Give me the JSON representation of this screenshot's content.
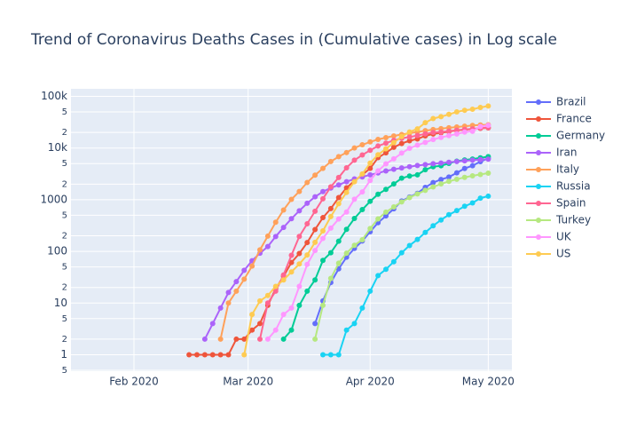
{
  "chart_data": {
    "type": "line",
    "title": "Trend of Coronavirus Deaths Cases in  (Cumulative cases) in Log scale",
    "log_y": true,
    "grid": true,
    "legend": "right",
    "x": [
      "2020-02-15",
      "2020-02-17",
      "2020-02-19",
      "2020-02-21",
      "2020-02-23",
      "2020-02-25",
      "2020-02-27",
      "2020-02-29",
      "2020-03-02",
      "2020-03-04",
      "2020-03-06",
      "2020-03-08",
      "2020-03-10",
      "2020-03-12",
      "2020-03-14",
      "2020-03-16",
      "2020-03-18",
      "2020-03-20",
      "2020-03-22",
      "2020-03-24",
      "2020-03-26",
      "2020-03-28",
      "2020-03-30",
      "2020-04-01",
      "2020-04-03",
      "2020-04-05",
      "2020-04-07",
      "2020-04-09",
      "2020-04-11",
      "2020-04-13",
      "2020-04-15",
      "2020-04-17",
      "2020-04-19",
      "2020-04-21",
      "2020-04-23",
      "2020-04-25",
      "2020-04-27",
      "2020-04-29",
      "2020-05-01"
    ],
    "xlim": [
      "2020-01-16",
      "2020-05-07"
    ],
    "xticks": [
      {
        "value": "2020-02-01",
        "label": "Feb 2020"
      },
      {
        "value": "2020-03-01",
        "label": "Mar 2020"
      },
      {
        "value": "2020-04-01",
        "label": "Apr 2020"
      },
      {
        "value": "2020-05-01",
        "label": "May 2020"
      }
    ],
    "ylim": [
      0.48,
      140000
    ],
    "yticks": [
      {
        "value": 0.5,
        "label": "5"
      },
      1,
      {
        "value": 2,
        "label": "2"
      },
      {
        "value": 5,
        "label": "5"
      },
      10,
      {
        "value": 20,
        "label": "2"
      },
      {
        "value": 50,
        "label": "5"
      },
      100,
      {
        "value": 200,
        "label": "2"
      },
      {
        "value": 500,
        "label": "5"
      },
      1000,
      {
        "value": 2000,
        "label": "2"
      },
      {
        "value": 5000,
        "label": "5"
      },
      {
        "value": 10000,
        "label": "10k"
      },
      {
        "value": 20000,
        "label": "2"
      },
      {
        "value": 50000,
        "label": "5"
      },
      {
        "value": 100000,
        "label": "100k"
      }
    ],
    "series": [
      {
        "name": "Brazil",
        "color": "#636efa",
        "values": [
          null,
          null,
          null,
          null,
          null,
          null,
          null,
          null,
          null,
          null,
          null,
          null,
          null,
          null,
          null,
          null,
          4,
          11,
          25,
          46,
          77,
          114,
          159,
          240,
          359,
          486,
          667,
          941,
          1124,
          1328,
          1736,
          2141,
          2462,
          2741,
          3313,
          4016,
          4543,
          5466,
          6329
        ]
      },
      {
        "name": "France",
        "color": "#ef553b",
        "values": [
          1,
          1,
          1,
          1,
          1,
          1,
          2,
          2,
          3,
          4,
          9,
          19,
          33,
          61,
          91,
          148,
          264,
          450,
          674,
          1100,
          1696,
          2314,
          3024,
          4032,
          6507,
          8078,
          10328,
          12210,
          13832,
          14967,
          17167,
          18681,
          19718,
          20796,
          21856,
          22614,
          23293,
          24087,
          24594
        ]
      },
      {
        "name": "Germany",
        "color": "#00cc96",
        "values": [
          null,
          null,
          null,
          null,
          null,
          null,
          null,
          null,
          null,
          null,
          null,
          null,
          2,
          3,
          9,
          17,
          28,
          67,
          94,
          157,
          267,
          433,
          645,
          931,
          1275,
          1584,
          2016,
          2607,
          2871,
          3022,
          3804,
          4352,
          4538,
          5033,
          5575,
          5877,
          6126,
          6467,
          6812
        ]
      },
      {
        "name": "Iran",
        "color": "#ab63fa",
        "values": [
          null,
          null,
          2,
          4,
          8,
          16,
          26,
          43,
          66,
          92,
          124,
          194,
          291,
          429,
          611,
          853,
          1135,
          1433,
          1685,
          1934,
          2234,
          2517,
          2757,
          3036,
          3294,
          3603,
          3872,
          4110,
          4357,
          4585,
          4777,
          4958,
          5118,
          5297,
          5481,
          5650,
          5806,
          5957,
          6091
        ]
      },
      {
        "name": "Italy",
        "color": "#ffa15a",
        "values": [
          null,
          null,
          null,
          null,
          2,
          10,
          17,
          29,
          52,
          107,
          197,
          366,
          631,
          1016,
          1441,
          2158,
          2978,
          4032,
          5476,
          6820,
          8165,
          10023,
          11591,
          13155,
          14681,
          15887,
          17127,
          18279,
          19468,
          20465,
          21645,
          22745,
          23660,
          24648,
          25549,
          26384,
          27359,
          27967,
          28236
        ]
      },
      {
        "name": "Russia",
        "color": "#19d3f3",
        "values": [
          null,
          null,
          null,
          null,
          null,
          null,
          null,
          null,
          null,
          null,
          null,
          null,
          null,
          null,
          null,
          null,
          null,
          1,
          1,
          1,
          3,
          4,
          8,
          17,
          34,
          45,
          63,
          94,
          130,
          170,
          232,
          313,
          405,
          513,
          615,
          747,
          867,
          1073,
          1169
        ]
      },
      {
        "name": "Spain",
        "color": "#ff6692",
        "values": [
          null,
          null,
          null,
          null,
          null,
          null,
          null,
          null,
          null,
          2,
          10,
          17,
          35,
          84,
          195,
          342,
          598,
          1043,
          1772,
          2696,
          4145,
          5812,
          7340,
          9053,
          10935,
          12418,
          14045,
          15447,
          16353,
          17489,
          18812,
          20002,
          20453,
          21282,
          22157,
          22902,
          23521,
          24275,
          24824
        ]
      },
      {
        "name": "Turkey",
        "color": "#b6e880",
        "values": [
          null,
          null,
          null,
          null,
          null,
          null,
          null,
          null,
          null,
          null,
          null,
          null,
          null,
          null,
          null,
          null,
          2,
          9,
          30,
          59,
          92,
          131,
          168,
          277,
          425,
          574,
          725,
          908,
          1101,
          1296,
          1518,
          1769,
          2017,
          2259,
          2491,
          2706,
          2900,
          3081,
          3258
        ]
      },
      {
        "name": "UK",
        "color": "#ff97ff",
        "values": [
          null,
          null,
          null,
          null,
          null,
          null,
          null,
          null,
          null,
          null,
          2,
          3,
          6,
          8,
          21,
          56,
          104,
          178,
          282,
          423,
          578,
          1021,
          1415,
          2357,
          3611,
          4943,
          6171,
          7978,
          9875,
          11329,
          12868,
          14576,
          16060,
          17337,
          18738,
          20319,
          21092,
          26097,
          27510
        ]
      },
      {
        "name": "US",
        "color": "#fecb52",
        "values": [
          null,
          null,
          null,
          null,
          null,
          null,
          null,
          1,
          6,
          11,
          14,
          21,
          28,
          40,
          57,
          85,
          150,
          249,
          471,
          837,
          1383,
          2229,
          3148,
          5116,
          7401,
          9618,
          12721,
          16686,
          20455,
          23529,
          30985,
          37175,
          40478,
          44845,
          49954,
          53755,
          56259,
          60967,
          65068
        ]
      }
    ]
  }
}
